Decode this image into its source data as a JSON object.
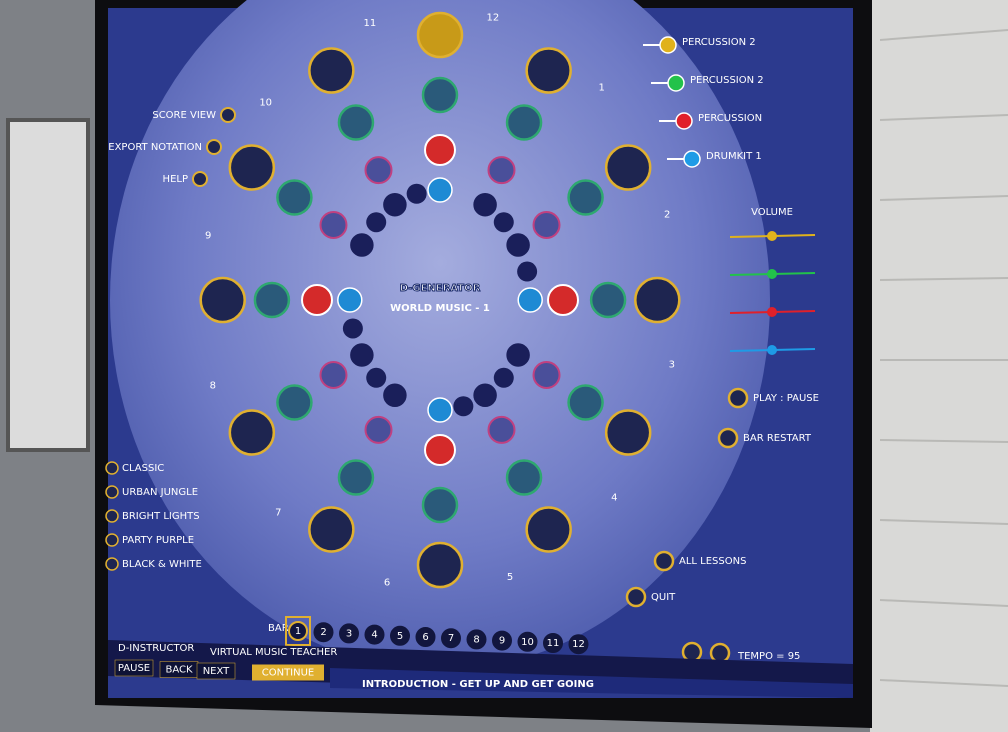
{
  "tracks": [
    {
      "label": "PERCUSSION 2",
      "color": "#e0b21c"
    },
    {
      "label": "PERCUSSION 2",
      "color": "#22c24a"
    },
    {
      "label": "PERCUSSION",
      "color": "#e0202a"
    },
    {
      "label": "DRUMKIT 1",
      "color": "#1e9be6"
    }
  ],
  "volume_label": "VOLUME",
  "menu": [
    "SCORE VIEW",
    "EXPORT NOTATION",
    "HELP"
  ],
  "center": {
    "title": "D-GENERATOR",
    "subtitle": "WORLD MUSIC - 1"
  },
  "controls": [
    "PLAY : PAUSE",
    "BAR RESTART"
  ],
  "themes": [
    "CLASSIC",
    "URBAN JUNGLE",
    "BRIGHT LIGHTS",
    "PARTY PURPLE",
    "BLACK & WHITE"
  ],
  "nav": [
    "ALL LESSONS",
    "QUIT"
  ],
  "tempo": "TEMPO = 95",
  "spokes": [
    "1",
    "2",
    "3",
    "4",
    "5",
    "6",
    "7",
    "8",
    "9",
    "10",
    "11",
    "12"
  ],
  "bar": {
    "label": "BAR",
    "numbers": [
      "1",
      "2",
      "3",
      "4",
      "5",
      "6",
      "7",
      "8",
      "9",
      "10",
      "11",
      "12"
    ]
  },
  "instructor": {
    "name": "D-INSTRUCTOR",
    "role": "VIRTUAL MUSIC TEACHER",
    "buttons": [
      "PAUSE",
      "BACK",
      "NEXT",
      "CONTINUE"
    ],
    "message": "INTRODUCTION - GET UP AND GET GOING"
  }
}
